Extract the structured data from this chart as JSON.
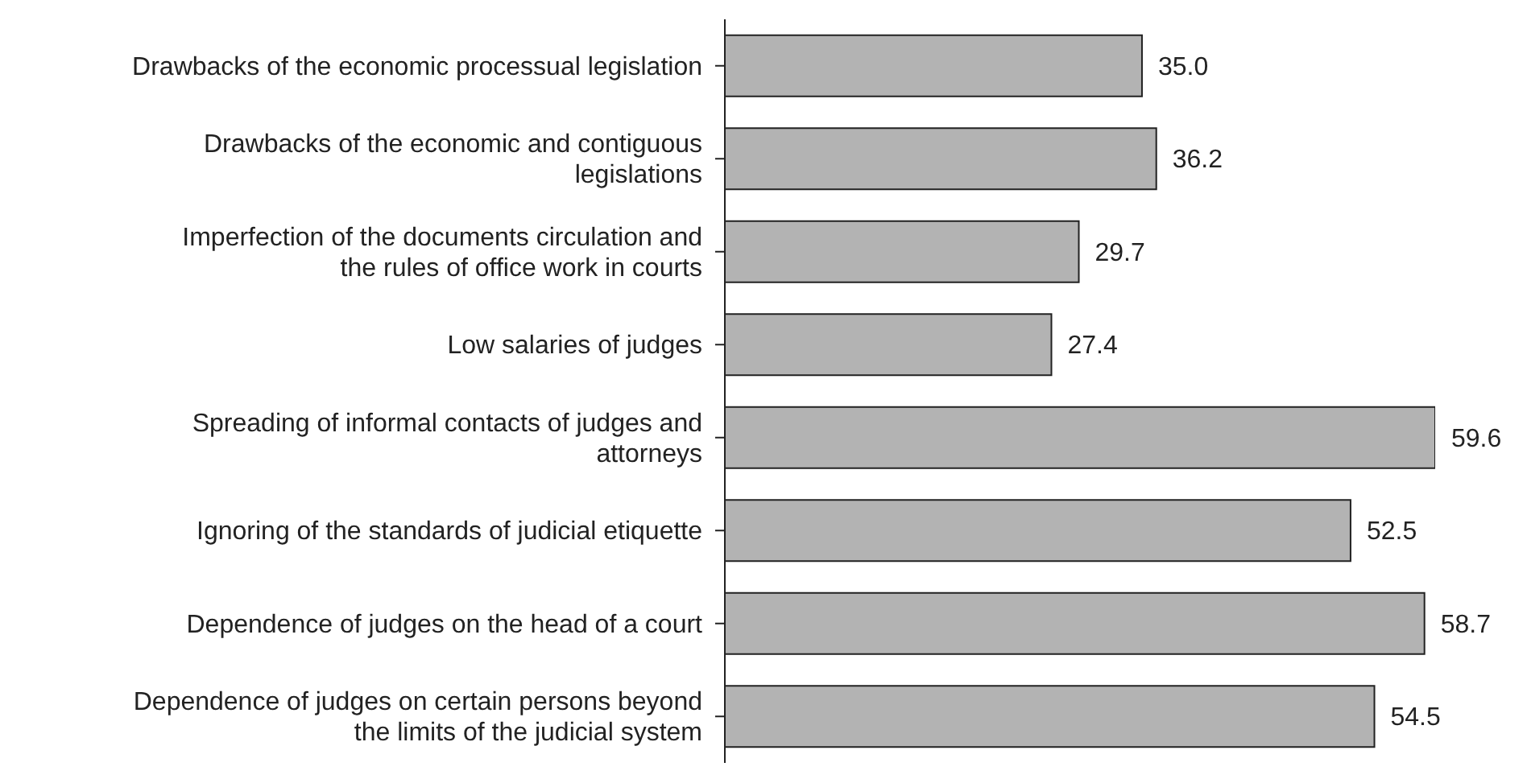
{
  "chart_data": {
    "type": "bar",
    "orientation": "horizontal",
    "categories": [
      "Drawbacks of the economic processual legislation",
      "Drawbacks of the economic and contiguous legislations",
      "Imperfection of the documents circulation and the rules of office work in courts",
      "Low salaries of judges",
      "Spreading of informal contacts of judges and attorneys",
      "Ignoring of the standards of judicial etiquette",
      "Dependence of judges on the head of a court",
      "Dependence of judges on certain persons beyond the limits of the judicial system"
    ],
    "values": [
      35.0,
      36.2,
      29.7,
      27.4,
      59.6,
      52.5,
      58.7,
      54.5
    ],
    "color": "#b3b3b3",
    "value_labels": [
      "35.0",
      "36.2",
      "29.7",
      "27.4",
      "59.6",
      "52.5",
      "58.7",
      "54.5"
    ]
  }
}
